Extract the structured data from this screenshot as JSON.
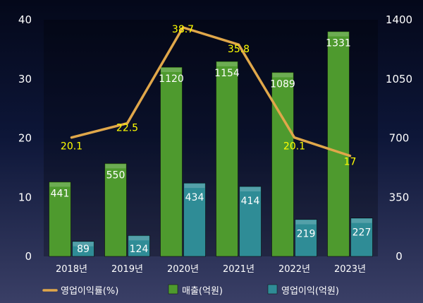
{
  "chart_data": {
    "type": "bar",
    "categories": [
      "2018년",
      "2019년",
      "2020년",
      "2021년",
      "2022년",
      "2023년"
    ],
    "series": [
      {
        "name": "매출(억원)",
        "type": "bar",
        "axis": "right",
        "color": "#4e9a2e",
        "values": [
          441,
          550,
          1120,
          1154,
          1089,
          1331
        ]
      },
      {
        "name": "영업이익(억원)",
        "type": "bar",
        "axis": "right",
        "color": "#2f8c96",
        "values": [
          89,
          124,
          434,
          414,
          219,
          227
        ]
      },
      {
        "name": "영업이익률(%)",
        "type": "line",
        "axis": "left",
        "color": "#e0a74a",
        "values": [
          20.1,
          22.5,
          38.7,
          35.8,
          20.1,
          17
        ]
      }
    ],
    "y_left": {
      "ticks": [
        "0",
        "10",
        "20",
        "30",
        "40"
      ],
      "ylim": [
        0,
        40
      ]
    },
    "y_right": {
      "ticks": [
        "0",
        "350",
        "700",
        "1050",
        "1400"
      ],
      "ylim": [
        0,
        1400
      ]
    },
    "legend": [
      "영업이익률(%)",
      "매출(억원)",
      "영업이익(억원)"
    ],
    "legend_position": "bottom",
    "grid": false,
    "title": "",
    "xlabel": "",
    "ylabel": ""
  }
}
